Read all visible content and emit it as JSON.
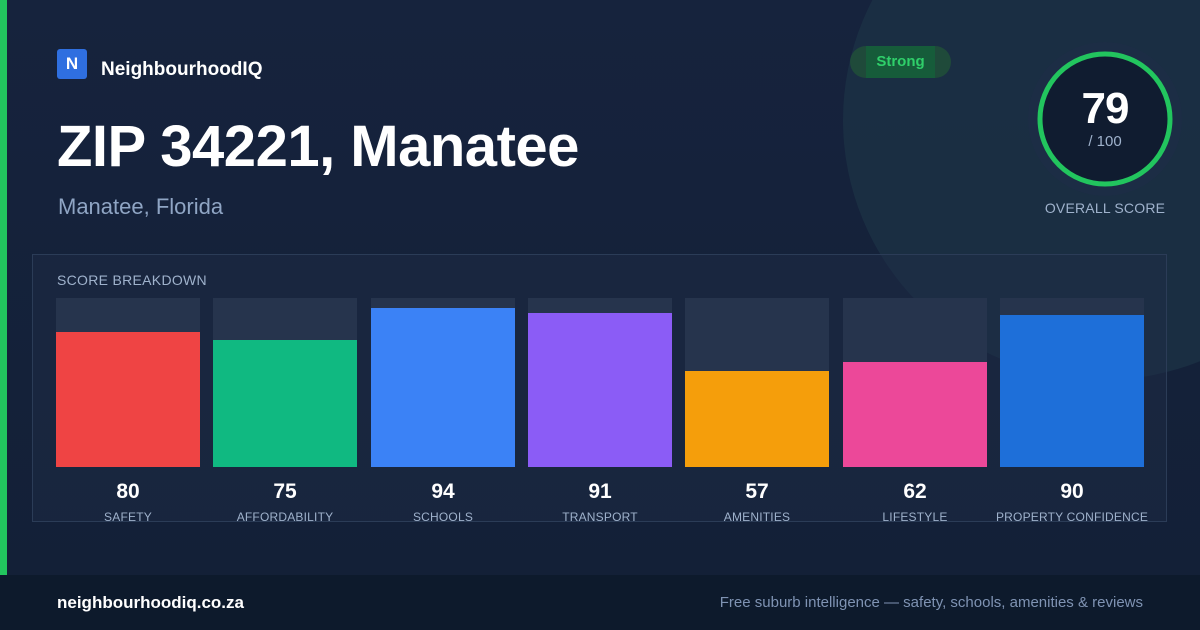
{
  "brand": {
    "logo_letter": "N",
    "name": "NeighbourhoodIQ"
  },
  "header": {
    "title": "ZIP 34221, Manatee",
    "subtitle": "Manatee, Florida"
  },
  "status": {
    "label": "Strong",
    "color": "#2fcf6a"
  },
  "overall": {
    "score": "79",
    "max": "/ 100",
    "label": "OVERALL SCORE",
    "fraction": 0.79,
    "ring_color": "#22c55e"
  },
  "breakdown": {
    "title": "SCORE BREAKDOWN",
    "items": [
      {
        "label": "SAFETY",
        "value": "80",
        "fraction": 0.8,
        "color": "#ef4444"
      },
      {
        "label": "AFFORDABILITY",
        "value": "75",
        "fraction": 0.75,
        "color": "#10b981"
      },
      {
        "label": "SCHOOLS",
        "value": "94",
        "fraction": 0.94,
        "color": "#3b82f6"
      },
      {
        "label": "TRANSPORT",
        "value": "91",
        "fraction": 0.91,
        "color": "#8b5cf6"
      },
      {
        "label": "AMENITIES",
        "value": "57",
        "fraction": 0.57,
        "color": "#f59e0b"
      },
      {
        "label": "LIFESTYLE",
        "value": "62",
        "fraction": 0.62,
        "color": "#ec4899"
      },
      {
        "label": "PROPERTY CONFIDENCE",
        "value": "90",
        "fraction": 0.9,
        "color": "#1e6fd9"
      }
    ]
  },
  "footer": {
    "url": "neighbourhoodiq.co.za",
    "tagline": "Free suburb intelligence — safety, schools, amenities & reviews"
  }
}
